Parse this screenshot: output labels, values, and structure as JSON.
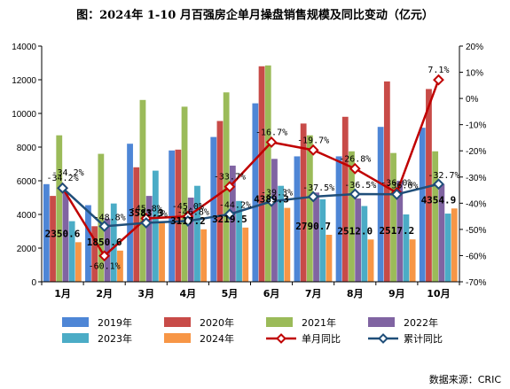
{
  "title": "图：2024年 1-10 月百强房企单月操盘销售规模及同比变动（亿元）",
  "source": "数据来源：CRIC",
  "chart_data": {
    "type": "bar",
    "categories": [
      "1月",
      "2月",
      "3月",
      "4月",
      "5月",
      "6月",
      "7月",
      "8月",
      "9月",
      "10月"
    ],
    "ylim": [
      0,
      14000
    ],
    "y_ticks": [
      "0",
      "2000",
      "4000",
      "6000",
      "8000",
      "10000",
      "12000",
      "14000"
    ],
    "y2lim": [
      -70,
      20
    ],
    "y2_ticks": [
      "20%",
      "10%",
      "0%",
      "-10%",
      "-20%",
      "-30%",
      "-40%",
      "-50%",
      "-60%",
      "-70%"
    ],
    "series": [
      {
        "name": "2019年",
        "color": "#4e86d6",
        "values": [
          5800,
          4550,
          8200,
          7800,
          8600,
          10600,
          7450,
          7450,
          9200,
          9150
        ]
      },
      {
        "name": "2020年",
        "color": "#c84b48",
        "values": [
          5100,
          3300,
          6800,
          7850,
          9550,
          12800,
          9400,
          9800,
          11900,
          11450
        ]
      },
      {
        "name": "2021年",
        "color": "#9bbb59",
        "values": [
          8700,
          7600,
          10800,
          10400,
          11250,
          12850,
          8700,
          7750,
          7650,
          7750
        ]
      },
      {
        "name": "2022年",
        "color": "#8064a2",
        "values": [
          5300,
          3750,
          5100,
          5000,
          6900,
          7300,
          5300,
          4950,
          6000,
          5800
        ]
      },
      {
        "name": "2023年",
        "color": "#4bacc6",
        "values": [
          3600,
          4650,
          6600,
          5700,
          4800,
          5700,
          4900,
          4500,
          4000,
          4050
        ]
      },
      {
        "name": "2024年",
        "color": "#f79646",
        "values": [
          2350.6,
          1850.6,
          3583.3,
          3117.2,
          3219.5,
          4389.3,
          2790.7,
          2512.0,
          2517.2,
          4354.9
        ]
      }
    ],
    "value_labels": [
      "2350.6",
      "1850.6",
      "3583.3",
      "3117.2",
      "3219.5",
      "4389.3",
      "2790.7",
      "2512.0",
      "2517.2",
      "4354.9"
    ],
    "line_series": [
      {
        "name": "单月同比",
        "color": "#c00000",
        "values": [
          -34.2,
          -60.1,
          -45.8,
          -45.0,
          -33.7,
          -16.7,
          -19.7,
          -26.8,
          -36.0,
          7.1
        ],
        "labels": [
          "-34.2%",
          "-60.1%",
          "-45.8%",
          "-45.0%",
          "-33.7%",
          "-16.7%",
          "-19.7%",
          "-26.8%",
          "-36.0%",
          "7.1%"
        ]
      },
      {
        "name": "累计同比",
        "color": "#1f4e79",
        "values": [
          -34.2,
          -48.8,
          -47.5,
          -46.8,
          -44.2,
          -39.3,
          -37.5,
          -36.5,
          -36.6,
          -32.7
        ],
        "labels": [
          "-34.2%",
          "-48.8%",
          "-47.5%",
          "-46.8%",
          "-44.2%",
          "-39.3%",
          "-37.5%",
          "-36.5%",
          "-36.6%",
          "-32.7%"
        ]
      }
    ]
  }
}
